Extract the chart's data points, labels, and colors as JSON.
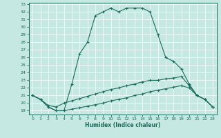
{
  "xlabel": "Humidex (Indice chaleur)",
  "bg_color": "#c5e8e3",
  "line_color": "#1a6b5a",
  "grid_color": "#ffffff",
  "xlim": [
    -0.5,
    23.5
  ],
  "ylim": [
    18.5,
    33.2
  ],
  "xticks": [
    0,
    1,
    2,
    3,
    4,
    5,
    6,
    7,
    8,
    9,
    10,
    11,
    12,
    13,
    14,
    15,
    16,
    17,
    18,
    19,
    20,
    21,
    22,
    23
  ],
  "yticks": [
    19,
    20,
    21,
    22,
    23,
    24,
    25,
    26,
    27,
    28,
    29,
    30,
    31,
    32,
    33
  ],
  "c1_x": [
    0,
    1,
    2,
    3,
    4,
    5,
    6,
    7,
    8,
    9,
    10,
    11,
    12,
    13,
    14,
    15,
    16,
    17,
    18,
    19,
    20,
    21,
    22,
    23
  ],
  "c1_y": [
    21.0,
    20.5,
    19.5,
    19.0,
    19.0,
    22.5,
    26.5,
    28.0,
    31.5,
    32.0,
    32.5,
    32.0,
    32.5,
    32.5,
    32.5,
    32.0,
    29.0,
    26.0,
    25.5,
    24.5,
    22.5,
    21.0,
    20.5,
    19.5
  ],
  "c2_x": [
    0,
    1,
    2,
    3,
    4,
    5,
    6,
    7,
    8,
    9,
    10,
    11,
    12,
    13,
    14,
    15,
    16,
    17,
    18,
    19,
    20,
    21,
    22,
    23
  ],
  "c2_y": [
    21.0,
    20.5,
    19.7,
    19.5,
    20.0,
    20.3,
    20.6,
    20.9,
    21.2,
    21.5,
    21.8,
    22.0,
    22.3,
    22.5,
    22.8,
    23.0,
    23.0,
    23.2,
    23.3,
    23.5,
    22.3,
    21.0,
    20.5,
    19.5
  ],
  "c3_x": [
    0,
    1,
    2,
    3,
    4,
    5,
    6,
    7,
    8,
    9,
    10,
    11,
    12,
    13,
    14,
    15,
    16,
    17,
    18,
    19,
    20,
    21,
    22,
    23
  ],
  "c3_y": [
    21.0,
    20.5,
    19.5,
    19.0,
    19.0,
    19.2,
    19.4,
    19.6,
    19.8,
    20.0,
    20.3,
    20.5,
    20.7,
    21.0,
    21.2,
    21.5,
    21.7,
    21.9,
    22.1,
    22.3,
    22.0,
    21.0,
    20.5,
    19.5
  ]
}
